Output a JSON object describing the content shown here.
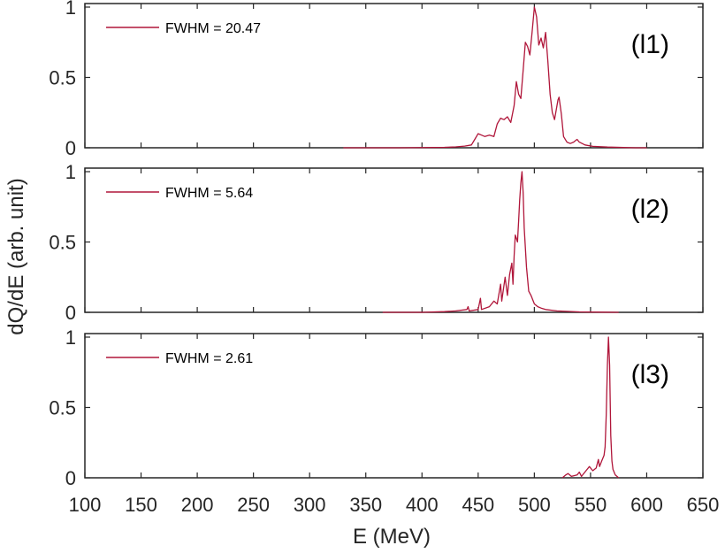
{
  "chart_data": {
    "type": "line",
    "xlabel": "E (MeV)",
    "ylabel": "dQ/dE (arb. unit)",
    "xlim": [
      100,
      650
    ],
    "x_ticks": [
      100,
      150,
      200,
      250,
      300,
      350,
      400,
      450,
      500,
      550,
      600,
      650
    ],
    "colors": {
      "series": "#b0163a",
      "axis": "#262626"
    },
    "panels": [
      {
        "id": "l1",
        "tag": "(l1)",
        "legend": "FWHM = 20.47",
        "ylim": [
          0,
          1
        ],
        "y_ticks": [
          0,
          0.5,
          1
        ],
        "y_tick_labels": [
          "0",
          "0.5",
          "1"
        ],
        "points": [
          [
            330,
            0
          ],
          [
            380,
            0
          ],
          [
            420,
            0.003
          ],
          [
            430,
            0.006
          ],
          [
            438,
            0.012
          ],
          [
            444,
            0.02
          ],
          [
            447,
            0.06
          ],
          [
            450,
            0.1
          ],
          [
            453,
            0.09
          ],
          [
            456,
            0.08
          ],
          [
            460,
            0.09
          ],
          [
            464,
            0.08
          ],
          [
            467,
            0.17
          ],
          [
            470,
            0.21
          ],
          [
            473,
            0.2
          ],
          [
            476,
            0.22
          ],
          [
            479,
            0.18
          ],
          [
            482,
            0.3
          ],
          [
            484,
            0.47
          ],
          [
            486,
            0.38
          ],
          [
            488,
            0.35
          ],
          [
            490,
            0.55
          ],
          [
            492,
            0.75
          ],
          [
            494,
            0.72
          ],
          [
            496,
            0.66
          ],
          [
            498,
            0.82
          ],
          [
            500,
            1.0
          ],
          [
            502,
            0.93
          ],
          [
            504,
            0.73
          ],
          [
            506,
            0.78
          ],
          [
            508,
            0.71
          ],
          [
            510,
            0.82
          ],
          [
            512,
            0.62
          ],
          [
            514,
            0.38
          ],
          [
            516,
            0.25
          ],
          [
            518,
            0.2
          ],
          [
            521,
            0.34
          ],
          [
            522,
            0.36
          ],
          [
            524,
            0.24
          ],
          [
            526,
            0.08
          ],
          [
            529,
            0.04
          ],
          [
            532,
            0.03
          ],
          [
            535,
            0.04
          ],
          [
            538,
            0.06
          ],
          [
            540,
            0.04
          ],
          [
            545,
            0.02
          ],
          [
            552,
            0.01
          ],
          [
            565,
            0.005
          ],
          [
            590,
            0
          ],
          [
            600,
            0
          ]
        ]
      },
      {
        "id": "l2",
        "tag": "(l2)",
        "legend": "FWHM = 5.64",
        "ylim": [
          0,
          1
        ],
        "y_ticks": [
          0,
          0.5,
          1
        ],
        "y_tick_labels": [
          "0",
          "0.5",
          "1"
        ],
        "points": [
          [
            365,
            0
          ],
          [
            400,
            0
          ],
          [
            420,
            0.005
          ],
          [
            430,
            0.01
          ],
          [
            440,
            0.02
          ],
          [
            441,
            0.04
          ],
          [
            442,
            0.01
          ],
          [
            450,
            0.02
          ],
          [
            452,
            0.1
          ],
          [
            453,
            0.02
          ],
          [
            460,
            0.04
          ],
          [
            464,
            0.08
          ],
          [
            467,
            0.06
          ],
          [
            470,
            0.2
          ],
          [
            471,
            0.08
          ],
          [
            474,
            0.25
          ],
          [
            476,
            0.12
          ],
          [
            478,
            0.27
          ],
          [
            480,
            0.35
          ],
          [
            481,
            0.2
          ],
          [
            482,
            0.4
          ],
          [
            483,
            0.55
          ],
          [
            485,
            0.5
          ],
          [
            486,
            0.65
          ],
          [
            487,
            0.8
          ],
          [
            488,
            0.92
          ],
          [
            489,
            1.0
          ],
          [
            490,
            0.85
          ],
          [
            491,
            0.6
          ],
          [
            493,
            0.32
          ],
          [
            495,
            0.15
          ],
          [
            497,
            0.12
          ],
          [
            500,
            0.06
          ],
          [
            503,
            0.04
          ],
          [
            506,
            0.03
          ],
          [
            510,
            0.02
          ],
          [
            520,
            0.01
          ],
          [
            540,
            0.003
          ],
          [
            560,
            0.001
          ],
          [
            575,
            0
          ]
        ]
      },
      {
        "id": "l3",
        "tag": "(l3)",
        "legend": "FWHM = 2.61",
        "ylim": [
          0,
          1
        ],
        "y_ticks": [
          0,
          0.5,
          1
        ],
        "y_tick_labels": [
          "0",
          "0.5",
          "1"
        ],
        "points": [
          [
            525,
            0
          ],
          [
            528,
            0.02
          ],
          [
            530,
            0.03
          ],
          [
            533,
            0.01
          ],
          [
            538,
            0.02
          ],
          [
            540,
            0.04
          ],
          [
            542,
            0.01
          ],
          [
            546,
            0.05
          ],
          [
            549,
            0.08
          ],
          [
            552,
            0.05
          ],
          [
            555,
            0.07
          ],
          [
            557,
            0.13
          ],
          [
            558,
            0.08
          ],
          [
            560,
            0.12
          ],
          [
            562,
            0.16
          ],
          [
            563,
            0.22
          ],
          [
            564,
            0.45
          ],
          [
            565,
            0.8
          ],
          [
            566,
            1.0
          ],
          [
            567,
            0.8
          ],
          [
            568,
            0.3
          ],
          [
            569,
            0.12
          ],
          [
            570,
            0.06
          ],
          [
            572,
            0.02
          ],
          [
            575,
            0
          ]
        ]
      }
    ]
  }
}
